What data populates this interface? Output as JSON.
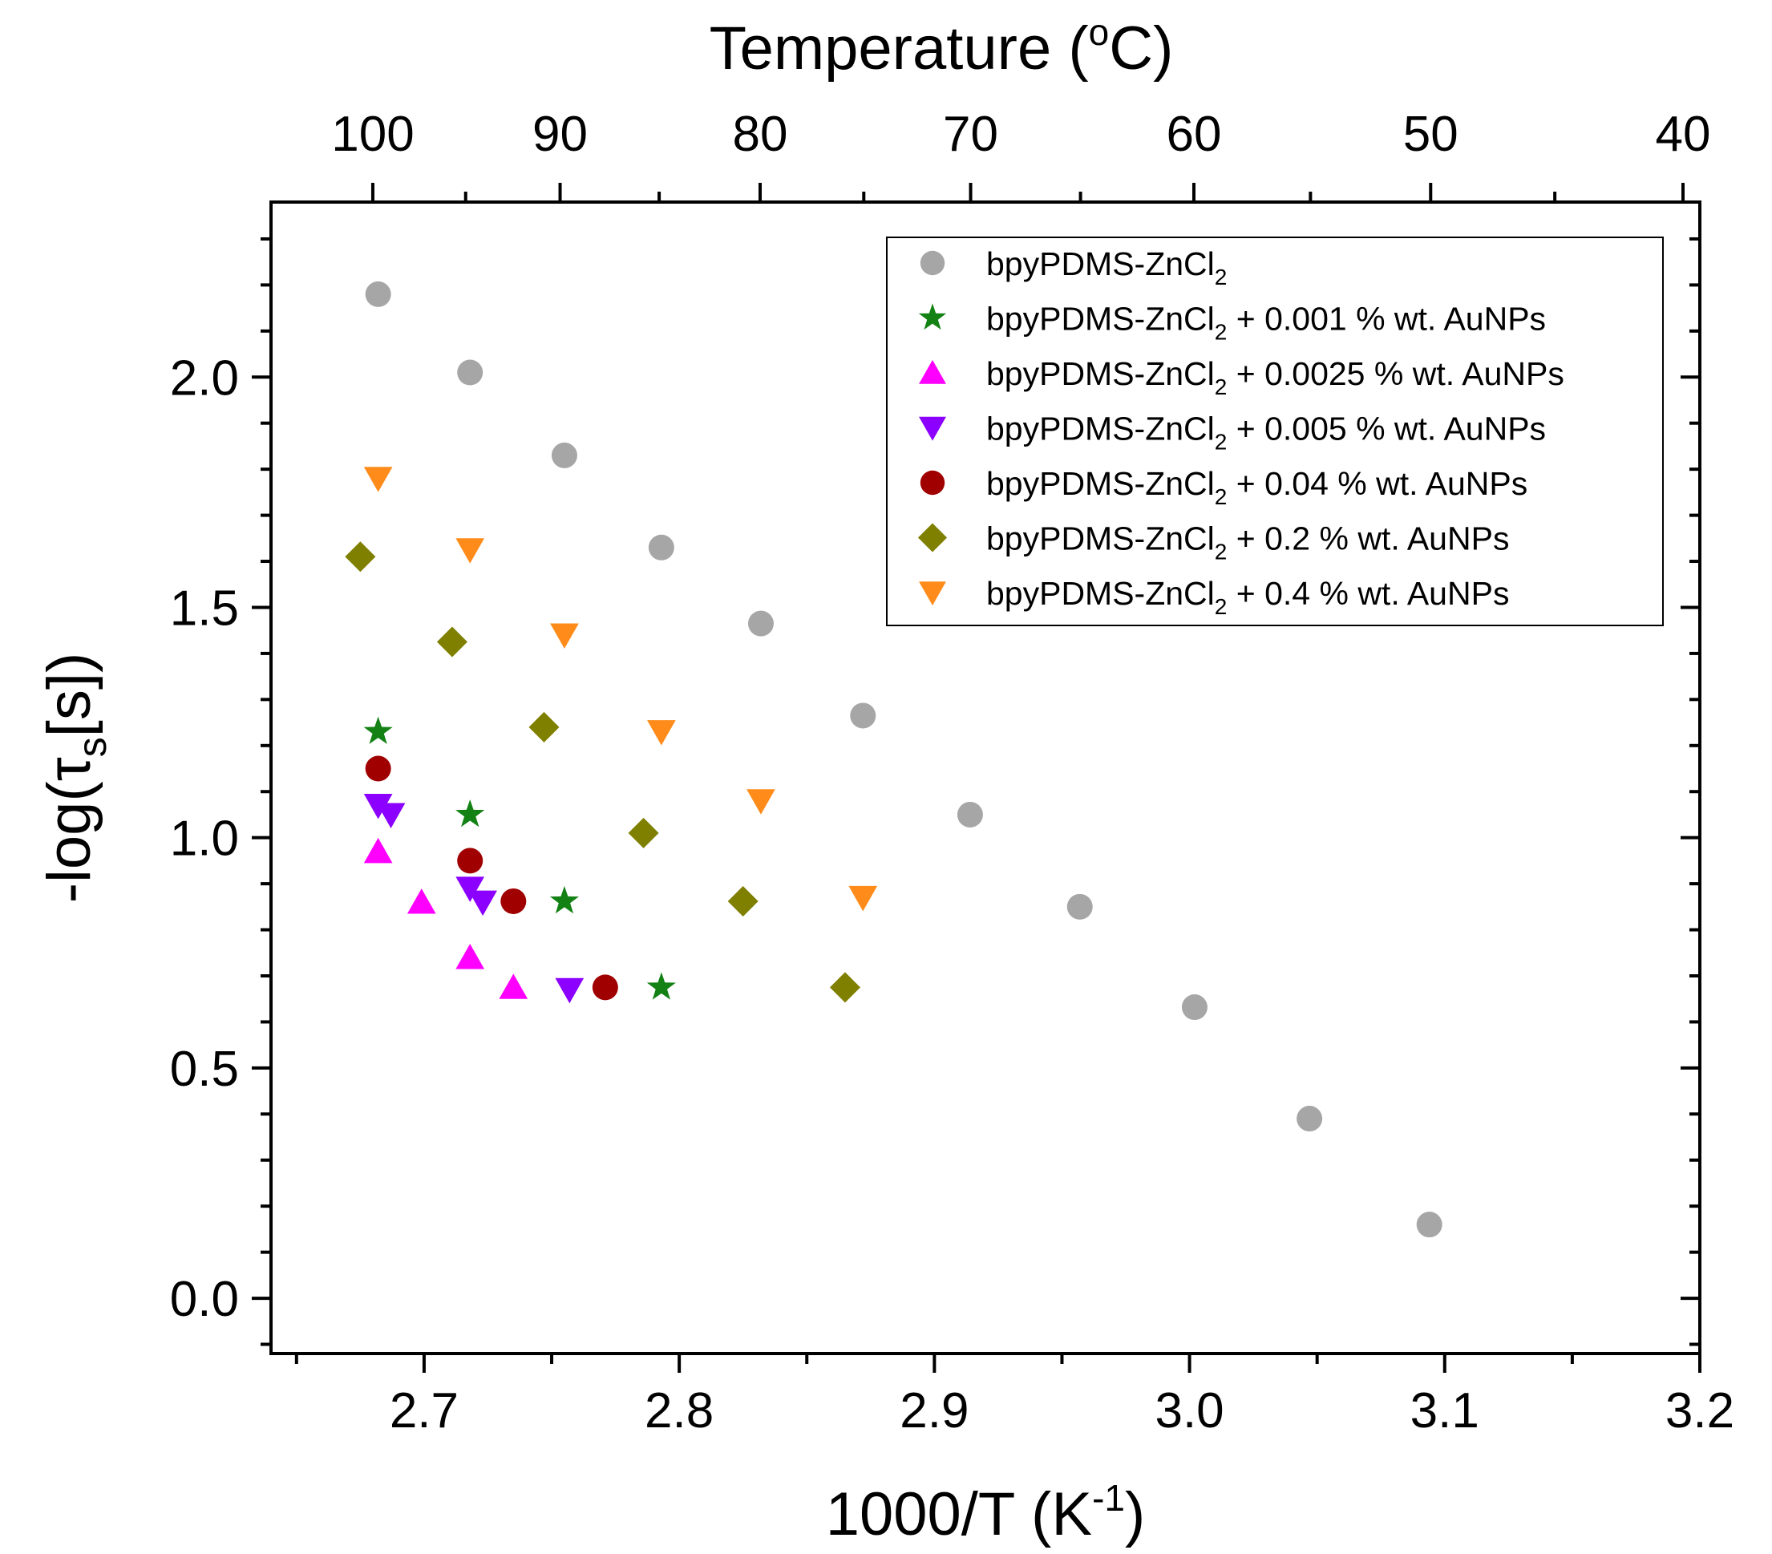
{
  "chart_data": {
    "type": "scatter",
    "xlabel": "1000/T (K",
    "xlabel_sup": "-1",
    "xlabel_close": ")",
    "ylabel": "-log(τ",
    "ylabel_sub": "s",
    "ylabel_close": "[s])",
    "x2label": "Temperature (",
    "x2label_sup": "o",
    "x2label_close": "C)",
    "xlim": [
      2.64,
      3.2
    ],
    "ylim": [
      -0.12,
      2.38
    ],
    "grid": false,
    "legend_position": "top-right",
    "x_ticks": [
      {
        "value": 2.7,
        "label": "2.7"
      },
      {
        "value": 2.8,
        "label": "2.8"
      },
      {
        "value": 2.9,
        "label": "2.9"
      },
      {
        "value": 3.0,
        "label": "3.0"
      },
      {
        "value": 3.1,
        "label": "3.1"
      },
      {
        "value": 3.2,
        "label": "3.2"
      }
    ],
    "y_ticks": [
      {
        "value": 0.0,
        "label": "0.0"
      },
      {
        "value": 0.5,
        "label": "0.5"
      },
      {
        "value": 1.0,
        "label": "1.0"
      },
      {
        "value": 1.5,
        "label": "1.5"
      },
      {
        "value": 2.0,
        "label": "2.0"
      }
    ],
    "top_ticks": [
      {
        "value": 2.6799,
        "label": "100"
      },
      {
        "value": 2.7533,
        "label": "90"
      },
      {
        "value": 2.8317,
        "label": "80"
      },
      {
        "value": 2.9142,
        "label": "70"
      },
      {
        "value": 3.0017,
        "label": "60"
      },
      {
        "value": 3.0945,
        "label": "50"
      },
      {
        "value": 3.1934,
        "label": "40"
      }
    ],
    "series": [
      {
        "name": "bpyPDMS-ZnCl",
        "name_sub": "2",
        "name_suffix": "",
        "color": "#a6a6a6",
        "marker": "circle",
        "points": [
          [
            2.682,
            2.18
          ],
          [
            2.718,
            2.01
          ],
          [
            2.755,
            1.83
          ],
          [
            2.793,
            1.63
          ],
          [
            2.832,
            1.465
          ],
          [
            2.872,
            1.265
          ],
          [
            2.914,
            1.05
          ],
          [
            2.957,
            0.85
          ],
          [
            3.002,
            0.632
          ],
          [
            3.047,
            0.39
          ],
          [
            3.094,
            0.16
          ]
        ]
      },
      {
        "name": "bpyPDMS-ZnCl",
        "name_sub": "2",
        "name_suffix": " + 0.001 % wt. AuNPs",
        "color": "#138113",
        "marker": "star",
        "points": [
          [
            2.682,
            1.23
          ],
          [
            2.718,
            1.05
          ],
          [
            2.755,
            0.862
          ],
          [
            2.793,
            0.675
          ]
        ]
      },
      {
        "name": "bpyPDMS-ZnCl",
        "name_sub": "2",
        "name_suffix": " + 0.0025 % wt. AuNPs",
        "color": "#ff00ff",
        "marker": "triangle-up",
        "points": [
          [
            2.682,
            0.97
          ],
          [
            2.699,
            0.86
          ],
          [
            2.718,
            0.74
          ],
          [
            2.735,
            0.675
          ]
        ]
      },
      {
        "name": "bpyPDMS-ZnCl",
        "name_sub": "2",
        "name_suffix": " + 0.005 % wt. AuNPs",
        "color": "#8b00ff",
        "marker": "triangle-down",
        "points": [
          [
            2.682,
            1.07
          ],
          [
            2.687,
            1.05
          ],
          [
            2.718,
            0.89
          ],
          [
            2.723,
            0.86
          ],
          [
            2.757,
            0.67
          ]
        ]
      },
      {
        "name": "bpyPDMS-ZnCl",
        "name_sub": "2",
        "name_suffix": " + 0.04 % wt. AuNPs",
        "color": "#a00000",
        "marker": "circle",
        "points": [
          [
            2.682,
            1.15
          ],
          [
            2.718,
            0.95
          ],
          [
            2.735,
            0.862
          ],
          [
            2.771,
            0.675
          ]
        ]
      },
      {
        "name": "bpyPDMS-ZnCl",
        "name_sub": "2",
        "name_suffix": " + 0.2 % wt. AuNPs",
        "color": "#7f7f00",
        "marker": "diamond",
        "points": [
          [
            2.675,
            1.61
          ],
          [
            2.711,
            1.425
          ],
          [
            2.747,
            1.24
          ],
          [
            2.786,
            1.01
          ],
          [
            2.825,
            0.862
          ],
          [
            2.865,
            0.675
          ]
        ]
      },
      {
        "name": "bpyPDMS-ZnCl",
        "name_sub": "2",
        "name_suffix": " + 0.4 % wt. AuNPs",
        "color": "#ff8c1a",
        "marker": "triangle-down",
        "points": [
          [
            2.682,
            1.78
          ],
          [
            2.718,
            1.625
          ],
          [
            2.755,
            1.44
          ],
          [
            2.793,
            1.23
          ],
          [
            2.832,
            1.08
          ],
          [
            2.872,
            0.87
          ]
        ]
      }
    ]
  }
}
